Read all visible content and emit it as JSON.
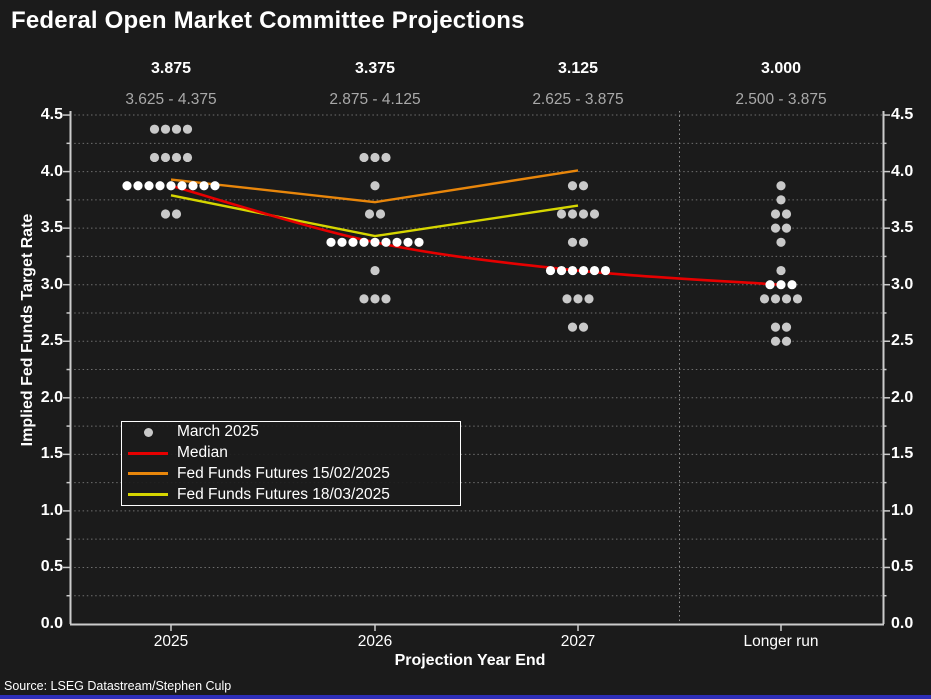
{
  "title": "Federal Open Market Committee Projections",
  "source": "Source: LSEG Datastream/Stephen Culp",
  "colors": {
    "background": "#1b1b1b",
    "axis": "#cccccc",
    "grid": "#6f6f6f",
    "separator": "#8d8d8d",
    "tick_text": "#ffffff",
    "range_text": "#a9a9a9",
    "dot": "#c9c9c9",
    "dot_median": "#ffffff",
    "median_line": "#e60000",
    "futures_feb": "#e8860b",
    "futures_mar": "#d6d600",
    "bottom_bar": "#2e2eb8"
  },
  "chart_data": {
    "type": "scatter",
    "title": "Federal Open Market Committee Projections",
    "xlabel": "Projection Year End",
    "ylabel": "Implied Fed Funds Target Rate",
    "ylim": [
      0.0,
      4.5
    ],
    "grid_step": 0.25,
    "grid_on": true,
    "legend_position": "center-left",
    "categories": [
      "2025",
      "2026",
      "2027",
      "Longer run"
    ],
    "y_tick_labels": [
      "4.5",
      "4.0",
      "3.5",
      "3.0",
      "2.5",
      "2.0",
      "1.5",
      "1.0",
      "0.5",
      "0.0"
    ],
    "annotations": [
      {
        "category": "2025",
        "median": "3.875",
        "range": "3.625 - 4.375"
      },
      {
        "category": "2026",
        "median": "3.375",
        "range": "2.875 - 4.125"
      },
      {
        "category": "2027",
        "median": "3.125",
        "range": "2.625 - 3.875"
      },
      {
        "category": "Longer run",
        "median": "3.000",
        "range": "2.500 - 3.875"
      }
    ],
    "dot_plot": [
      {
        "category": "2025",
        "median": 3.875,
        "levels": [
          {
            "rate": 4.375,
            "count": 4
          },
          {
            "rate": 4.125,
            "count": 4
          },
          {
            "rate": 3.875,
            "count": 9
          },
          {
            "rate": 3.625,
            "count": 2
          }
        ]
      },
      {
        "category": "2026",
        "median": 3.375,
        "levels": [
          {
            "rate": 4.125,
            "count": 3
          },
          {
            "rate": 3.875,
            "count": 1
          },
          {
            "rate": 3.625,
            "count": 2
          },
          {
            "rate": 3.375,
            "count": 9
          },
          {
            "rate": 3.125,
            "count": 1
          },
          {
            "rate": 2.875,
            "count": 3
          }
        ]
      },
      {
        "category": "2027",
        "median": 3.125,
        "levels": [
          {
            "rate": 3.875,
            "count": 2
          },
          {
            "rate": 3.625,
            "count": 4
          },
          {
            "rate": 3.375,
            "count": 2
          },
          {
            "rate": 3.125,
            "count": 6
          },
          {
            "rate": 2.875,
            "count": 3
          },
          {
            "rate": 2.625,
            "count": 2
          }
        ]
      },
      {
        "category": "Longer run",
        "median": 3.0,
        "levels": [
          {
            "rate": 3.875,
            "count": 1
          },
          {
            "rate": 3.75,
            "count": 1
          },
          {
            "rate": 3.625,
            "count": 2
          },
          {
            "rate": 3.5,
            "count": 2
          },
          {
            "rate": 3.375,
            "count": 1
          },
          {
            "rate": 3.125,
            "count": 1
          },
          {
            "rate": 3.0,
            "count": 3
          },
          {
            "rate": 2.875,
            "count": 4
          },
          {
            "rate": 2.625,
            "count": 2
          },
          {
            "rate": 2.5,
            "count": 2
          }
        ]
      }
    ],
    "series": [
      {
        "name": "Median",
        "color_key": "median_line",
        "smooth": true,
        "x": [
          "2025",
          "2026",
          "2027",
          "Longer run"
        ],
        "values": [
          3.875,
          3.375,
          3.125,
          3.0
        ]
      },
      {
        "name": "Fed Funds Futures 15/02/2025",
        "color_key": "futures_feb",
        "smooth": false,
        "x": [
          "2025",
          "2026",
          "2027"
        ],
        "values": [
          3.93,
          3.73,
          4.01
        ]
      },
      {
        "name": "Fed Funds Futures 18/03/2025",
        "color_key": "futures_mar",
        "smooth": false,
        "x": [
          "2025",
          "2026",
          "2027"
        ],
        "values": [
          3.79,
          3.43,
          3.7
        ]
      }
    ],
    "legend": [
      {
        "label": "March 2025",
        "marker": "dot",
        "color_key": "dot"
      },
      {
        "label": "Median",
        "marker": "line",
        "color_key": "median_line"
      },
      {
        "label": "Fed Funds Futures 15/02/2025",
        "marker": "line",
        "color_key": "futures_feb"
      },
      {
        "label": "Fed Funds Futures 18/03/2025",
        "marker": "line",
        "color_key": "futures_mar"
      }
    ],
    "separator_after_category": "2027"
  }
}
